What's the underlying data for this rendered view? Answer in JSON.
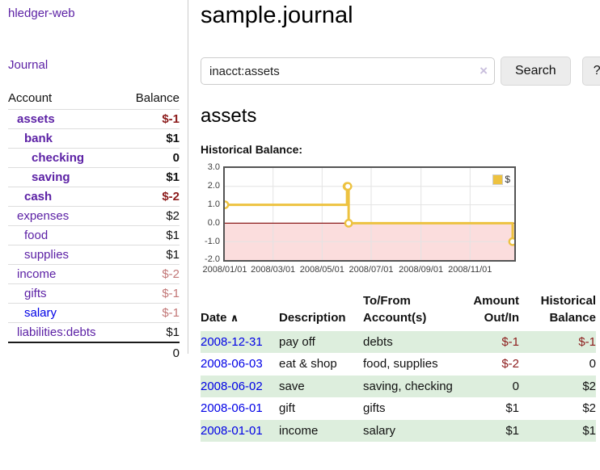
{
  "app": {
    "title": "hledger-web",
    "nav_journal": "Journal"
  },
  "sidebar": {
    "col_account": "Account",
    "col_balance": "Balance",
    "accounts": [
      {
        "name": "assets",
        "depth": 1,
        "bold": true,
        "balance": "$-1",
        "neg": "strong",
        "link": "purple"
      },
      {
        "name": "bank",
        "depth": 2,
        "bold": true,
        "balance": "$1",
        "neg": "none",
        "link": "purple"
      },
      {
        "name": "checking",
        "depth": 3,
        "bold": true,
        "balance": "0",
        "neg": "none",
        "link": "purple"
      },
      {
        "name": "saving",
        "depth": 3,
        "bold": true,
        "balance": "$1",
        "neg": "none",
        "link": "purple"
      },
      {
        "name": "cash",
        "depth": 2,
        "bold": true,
        "balance": "$-2",
        "neg": "strong",
        "link": "purple"
      },
      {
        "name": "expenses",
        "depth": 1,
        "bold": false,
        "balance": "$2",
        "neg": "none",
        "link": "purple"
      },
      {
        "name": "food",
        "depth": 2,
        "bold": false,
        "balance": "$1",
        "neg": "none",
        "link": "purple"
      },
      {
        "name": "supplies",
        "depth": 2,
        "bold": false,
        "balance": "$1",
        "neg": "none",
        "link": "purple"
      },
      {
        "name": "income",
        "depth": 1,
        "bold": false,
        "balance": "$-2",
        "neg": "soft",
        "link": "purple"
      },
      {
        "name": "gifts",
        "depth": 2,
        "bold": false,
        "balance": "$-1",
        "neg": "soft",
        "link": "purple"
      },
      {
        "name": "salary",
        "depth": 2,
        "bold": false,
        "balance": "$-1",
        "neg": "soft",
        "link": "blue"
      },
      {
        "name": "liabilities:debts",
        "depth": 1,
        "bold": false,
        "balance": "$1",
        "neg": "none",
        "link": "purple"
      }
    ],
    "total": "0"
  },
  "header": {
    "title": "sample.journal"
  },
  "search": {
    "value": "inacct:assets",
    "clear_label": "×",
    "button_label": "Search",
    "help_label": "?"
  },
  "account_page": {
    "title": "assets",
    "chart_label": "Historical Balance:"
  },
  "chart_data": {
    "type": "line",
    "step": true,
    "title": "Historical Balance:",
    "series": [
      {
        "name": "$",
        "color": "#edc240",
        "points": [
          {
            "date": "2008-01-01",
            "value": 1
          },
          {
            "date": "2008-06-01",
            "value": 2
          },
          {
            "date": "2008-06-02",
            "value": 2
          },
          {
            "date": "2008-06-03",
            "value": 0
          },
          {
            "date": "2008-12-31",
            "value": -1
          }
        ]
      }
    ],
    "x_ticks": [
      "2008/01/01",
      "2008/03/01",
      "2008/05/01",
      "2008/07/01",
      "2008/09/01",
      "2008/11/01"
    ],
    "y_ticks": [
      3.0,
      2.0,
      1.0,
      0.0,
      -1.0,
      -2.0
    ],
    "ylim": [
      -2,
      3
    ],
    "xlim": [
      "2008-01-01",
      "2008-12-26"
    ],
    "grid": true,
    "legend_position": "top-right",
    "negative_region_color": "#fbdddd",
    "zero_line_color": "#8b1c1c",
    "grid_color": "#e3e3e3"
  },
  "register": {
    "headers": {
      "date": "Date",
      "sort_icon": "∧",
      "description": "Description",
      "accounts": "To/From Account(s)",
      "amount": "Amount Out/In",
      "balance": "Historical Balance"
    },
    "rows": [
      {
        "date": "2008-12-31",
        "description": "pay off",
        "accounts": "debts",
        "amount": "$-1",
        "amount_neg": true,
        "balance": "$-1",
        "balance_neg": true
      },
      {
        "date": "2008-06-03",
        "description": "eat & shop",
        "accounts": "food, supplies",
        "amount": "$-2",
        "amount_neg": true,
        "balance": "0",
        "balance_neg": false
      },
      {
        "date": "2008-06-02",
        "description": "save",
        "accounts": "saving, checking",
        "amount": "0",
        "amount_neg": false,
        "balance": "$2",
        "balance_neg": false
      },
      {
        "date": "2008-06-01",
        "description": "gift",
        "accounts": "gifts",
        "amount": "$1",
        "amount_neg": false,
        "balance": "$2",
        "balance_neg": false
      },
      {
        "date": "2008-01-01",
        "description": "income",
        "accounts": "salary",
        "amount": "$1",
        "amount_neg": false,
        "balance": "$1",
        "balance_neg": false
      }
    ]
  }
}
